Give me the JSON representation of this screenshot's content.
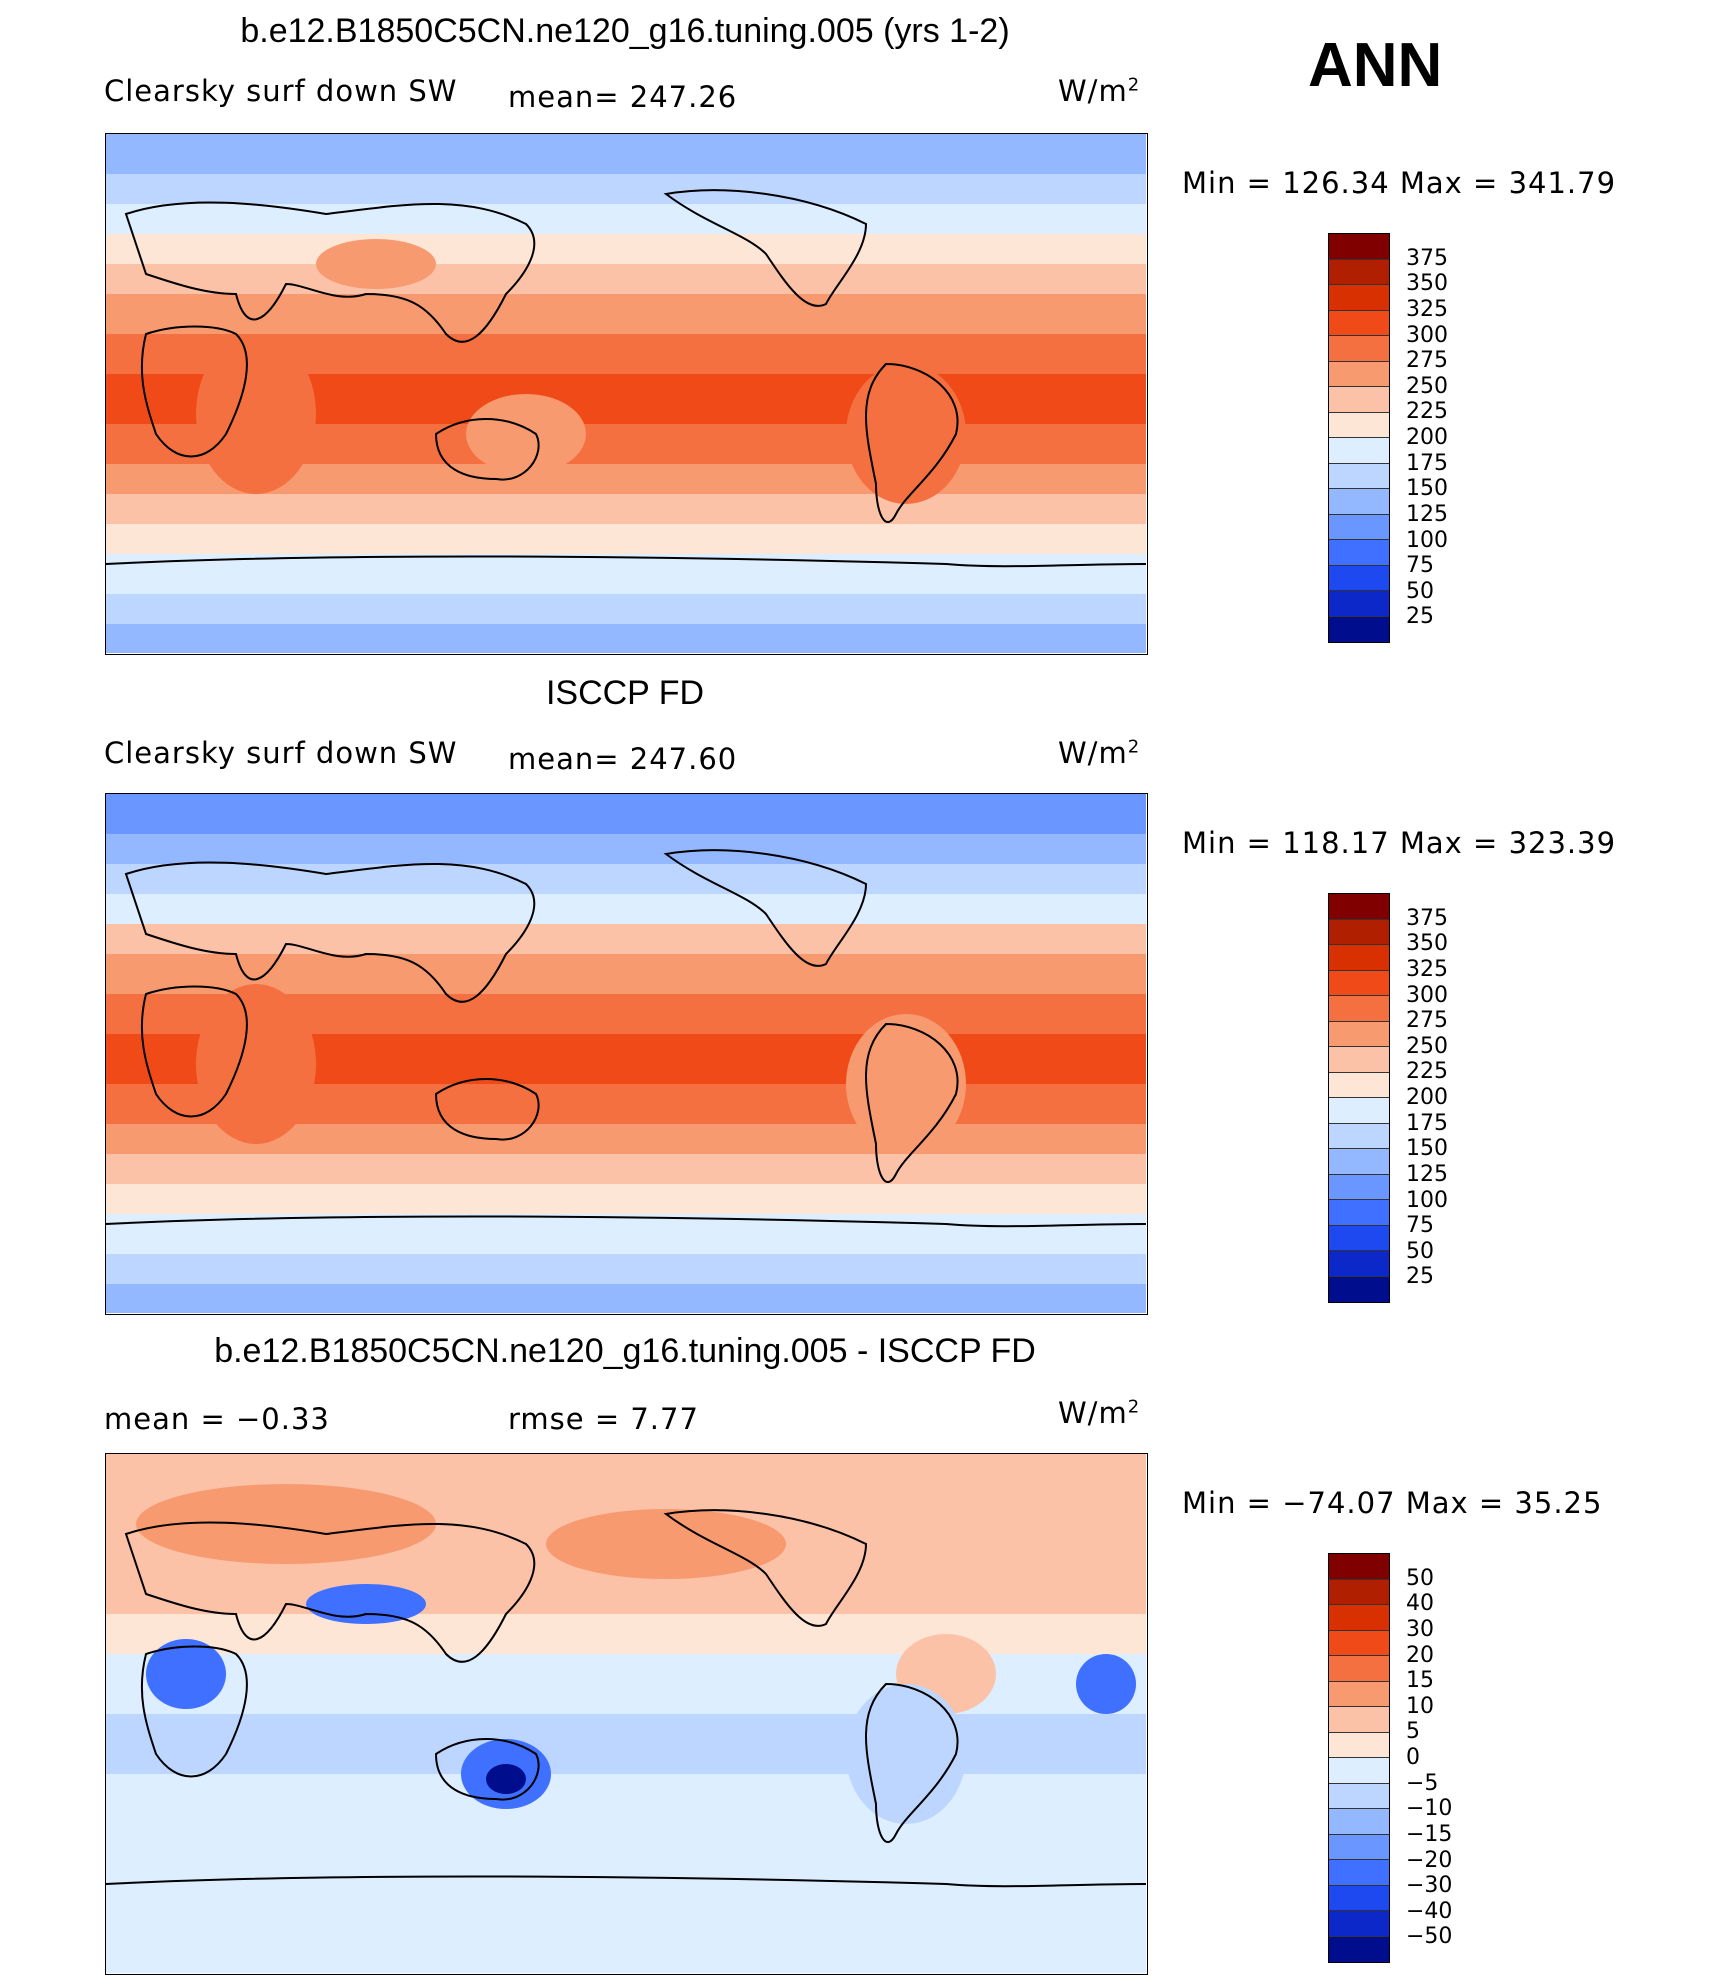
{
  "season": "ANN",
  "units_text": "W/m",
  "units_sup": "2",
  "panels": [
    {
      "title": "b.e12.B1850C5CN.ne120_g16.tuning.005 (yrs 1-2)",
      "left_label": "Clearsky surf down SW",
      "mid_label": "mean= 247.26",
      "minmax": "Min = 126.34 Max = 341.79",
      "type": "field"
    },
    {
      "title": "ISCCP FD",
      "left_label": "Clearsky surf down SW",
      "mid_label": "mean= 247.60",
      "minmax": "Min = 118.17 Max = 323.39",
      "type": "field"
    },
    {
      "title": "b.e12.B1850C5CN.ne120_g16.tuning.005 - ISCCP FD",
      "left_label": "mean =   −0.33",
      "mid_label": "rmse =    7.77",
      "minmax": "Min = −74.07 Max =   35.25",
      "type": "diff"
    }
  ],
  "colorbars": {
    "field": {
      "labels": [
        "375",
        "350",
        "325",
        "300",
        "275",
        "250",
        "225",
        "200",
        "175",
        "150",
        "125",
        "100",
        "75",
        "50",
        "25"
      ],
      "colors": [
        "#800000",
        "#b02000",
        "#d83000",
        "#f04a18",
        "#f57040",
        "#f89a70",
        "#fbc2a8",
        "#fde6d6",
        "#dceeff",
        "#bcd6ff",
        "#94b8ff",
        "#6a96ff",
        "#3f70ff",
        "#1e48f0",
        "#0c28c8",
        "#000d8c"
      ]
    },
    "diff": {
      "labels": [
        "50",
        "40",
        "30",
        "20",
        "15",
        "10",
        "5",
        "0",
        "−5",
        "−10",
        "−15",
        "−20",
        "−30",
        "−40",
        "−50"
      ],
      "colors": [
        "#800000",
        "#b02000",
        "#d83000",
        "#f04a18",
        "#f57040",
        "#f89a70",
        "#fbc2a8",
        "#fde6d6",
        "#dceeff",
        "#bcd6ff",
        "#94b8ff",
        "#6a96ff",
        "#3f70ff",
        "#1e48f0",
        "#0c28c8",
        "#000d8c"
      ]
    }
  }
}
